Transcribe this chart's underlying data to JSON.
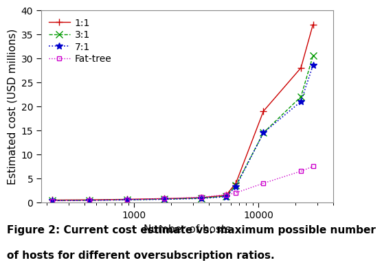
{
  "title": "",
  "xlabel": "Number of hosts",
  "ylabel": "Estimated cost (USD millions)",
  "caption_line1": "Figure 2: Current cost estimate vs. maximum possible number",
  "caption_line2": "of hosts for different oversubscription ratios.",
  "xlim": [
    180,
    40000
  ],
  "ylim": [
    0,
    40
  ],
  "yticks": [
    0,
    5,
    10,
    15,
    20,
    25,
    30,
    35,
    40
  ],
  "xtick_positions": [
    1000,
    10000
  ],
  "xtick_labels": [
    "1000",
    "10000"
  ],
  "series": [
    {
      "label": "1:1",
      "color": "#cc0000",
      "linestyle": "-",
      "marker": "+",
      "markersize": 7,
      "linewidth": 1.0,
      "x": [
        220,
        440,
        880,
        1760,
        3500,
        5500,
        6600,
        11000,
        22000,
        27500
      ],
      "y": [
        0.5,
        0.55,
        0.65,
        0.8,
        1.0,
        1.5,
        4.0,
        19.0,
        28.0,
        37.0
      ]
    },
    {
      "label": "3:1",
      "color": "#009900",
      "linestyle": "--",
      "marker": "x",
      "markersize": 7,
      "linewidth": 1.0,
      "x": [
        220,
        440,
        880,
        1760,
        3500,
        5500,
        6600,
        11000,
        22000,
        27500
      ],
      "y": [
        0.4,
        0.45,
        0.55,
        0.7,
        0.9,
        1.3,
        3.5,
        14.5,
        22.0,
        30.5
      ]
    },
    {
      "label": "7:1",
      "color": "#0000cc",
      "linestyle": ":",
      "marker": "*",
      "markersize": 7,
      "linewidth": 1.2,
      "x": [
        220,
        440,
        880,
        1760,
        3500,
        5500,
        6600,
        11000,
        22000,
        27500
      ],
      "y": [
        0.4,
        0.45,
        0.55,
        0.65,
        0.85,
        1.2,
        3.3,
        14.5,
        21.0,
        28.5
      ]
    },
    {
      "label": "Fat-tree",
      "color": "#cc00cc",
      "linestyle": ":",
      "marker": "s",
      "markersize": 5,
      "linewidth": 1.0,
      "x": [
        220,
        440,
        880,
        1760,
        3500,
        5500,
        6600,
        11000,
        22000,
        27500
      ],
      "y": [
        0.35,
        0.4,
        0.6,
        0.8,
        1.1,
        1.6,
        2.0,
        4.0,
        6.5,
        7.5
      ]
    }
  ],
  "background_color": "#ffffff",
  "plot_bg_color": "#ffffff",
  "legend_loc": "upper left",
  "fontsize_axis_label": 11,
  "fontsize_tick": 10,
  "fontsize_legend": 10,
  "fontsize_caption": 11
}
